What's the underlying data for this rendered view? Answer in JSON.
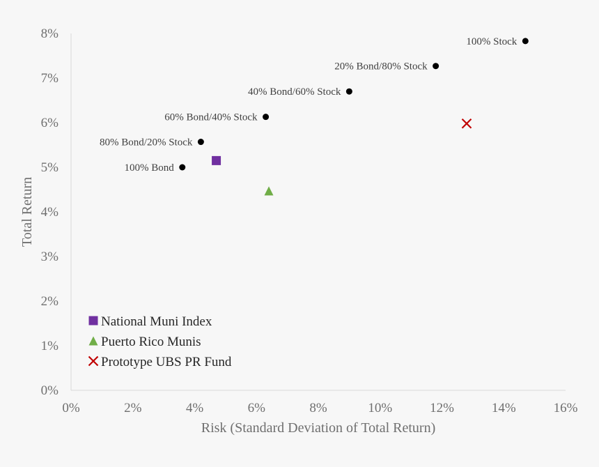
{
  "chart_data": {
    "type": "scatter",
    "xlabel": "Risk (Standard Deviation of Total Return)",
    "ylabel": "Total Return",
    "xlim": [
      0,
      16
    ],
    "ylim": [
      0,
      8
    ],
    "x_ticks": [
      "0%",
      "2%",
      "4%",
      "6%",
      "8%",
      "10%",
      "12%",
      "14%",
      "16%"
    ],
    "y_ticks": [
      "0%",
      "1%",
      "2%",
      "3%",
      "4%",
      "5%",
      "6%",
      "7%",
      "8%"
    ],
    "grid": false,
    "legend_position": "bottom-left",
    "portfolios": [
      {
        "label": "100% Bond",
        "x": 3.6,
        "y": 5.0
      },
      {
        "label": "80% Bond/20% Stock",
        "x": 4.2,
        "y": 5.57
      },
      {
        "label": "60% Bond/40% Stock",
        "x": 6.3,
        "y": 6.13
      },
      {
        "label": "40% Bond/60% Stock",
        "x": 9.0,
        "y": 6.7
      },
      {
        "label": "20% Bond/80% Stock",
        "x": 11.8,
        "y": 7.27
      },
      {
        "label": "100% Stock",
        "x": 14.7,
        "y": 7.83
      }
    ],
    "series": [
      {
        "name": "National Muni Index",
        "marker": "square",
        "color": "#7030a0",
        "x": 4.7,
        "y": 5.15
      },
      {
        "name": "Puerto Rico Munis",
        "marker": "triangle",
        "color": "#70ad47",
        "x": 6.4,
        "y": 4.47
      },
      {
        "name": "Prototype UBS PR Fund",
        "marker": "x",
        "color": "#c00000",
        "x": 12.8,
        "y": 5.98
      }
    ]
  }
}
